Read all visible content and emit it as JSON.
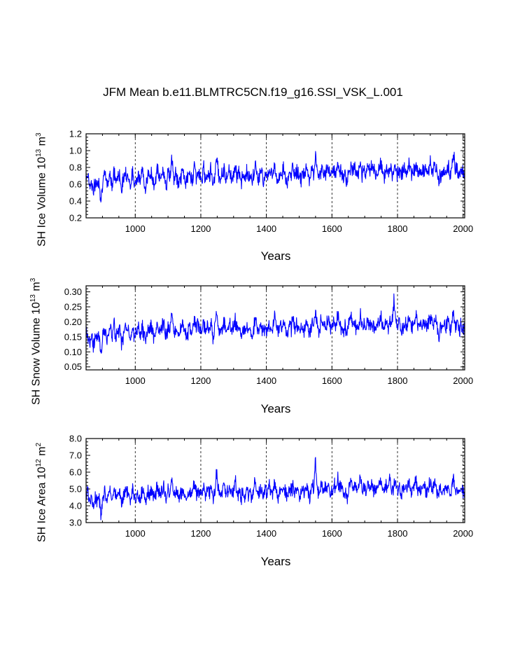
{
  "page": {
    "title": "JFM Mean b.e11.BLMTRC5CN.f19_g16.SSI_VSK_L.001"
  },
  "style": {
    "line_color": "#0000ff",
    "axis_color": "#000000"
  },
  "chart_data": [
    {
      "type": "line",
      "ylabel_main": "SH Ice Volume 10",
      "ylabel_exp": "13",
      "ylabel_unit": " m",
      "ylabel_unit_exp": "3",
      "xlabel": "Years",
      "xlim": [
        850,
        2005
      ],
      "ylim": [
        0.2,
        1.2
      ],
      "xticks": [
        1000,
        1200,
        1400,
        1600,
        1800,
        2000
      ],
      "yticks": [
        0.2,
        0.4,
        0.6,
        0.8,
        1.0,
        1.2
      ],
      "ytick_labels": [
        "0.2",
        "0.4",
        "0.6",
        "0.8",
        "1.0",
        "1.2"
      ],
      "grid_x": true,
      "series": [
        {
          "name": "SH Ice Volume",
          "x_start": 850,
          "x_end": 2005,
          "values": [
            0.68,
            0.72,
            0.58,
            0.63,
            0.5,
            0.62,
            0.6,
            0.65,
            0.41,
            0.66,
            0.7,
            0.61,
            0.64,
            0.74,
            0.58,
            0.76,
            0.62,
            0.69,
            0.72,
            0.55,
            0.64,
            0.78,
            0.7,
            0.66,
            0.59,
            0.73,
            0.6,
            0.68,
            0.71,
            0.63,
            0.76,
            0.66,
            0.57,
            0.7,
            0.67,
            0.72,
            0.64,
            0.61,
            0.79,
            0.69,
            0.65,
            0.75,
            0.72,
            0.58,
            0.74,
            0.68,
            0.93,
            0.64,
            0.7,
            0.66,
            0.6,
            0.71,
            0.76,
            0.65,
            0.62,
            0.73,
            0.69,
            0.67,
            0.82,
            0.7,
            0.74,
            0.68,
            0.64,
            0.79,
            0.66,
            0.75,
            0.71,
            0.77,
            0.62,
            0.68,
            0.96,
            0.73,
            0.67,
            0.7,
            0.8,
            0.64,
            0.72,
            0.78,
            0.66,
            0.7,
            0.85,
            0.69,
            0.75,
            0.6,
            0.73,
            0.64,
            0.77,
            0.68,
            0.7,
            0.59,
            0.74,
            0.82,
            0.66,
            0.71,
            0.76,
            0.62,
            0.74,
            0.68,
            0.8,
            0.72,
            0.69,
            0.87,
            0.7,
            0.63,
            0.75,
            0.72,
            0.8,
            0.66,
            0.58,
            0.74,
            0.7,
            0.83,
            0.68,
            0.76,
            0.71,
            0.66,
            0.74,
            0.69,
            0.78,
            0.72,
            0.64,
            0.81,
            0.7,
            0.95,
            0.73,
            0.68,
            0.8,
            0.75,
            0.7,
            0.77,
            0.82,
            0.68,
            0.74,
            0.79,
            0.7,
            0.86,
            0.73,
            0.76,
            0.69,
            0.72,
            0.6,
            0.78,
            0.84,
            0.74,
            0.8,
            0.71,
            0.76,
            0.88,
            0.72,
            0.78,
            0.69,
            0.82,
            0.75,
            0.8,
            0.74,
            0.7,
            0.73,
            0.78,
            0.84,
            0.76,
            0.7,
            0.79,
            0.74,
            0.82,
            0.72,
            0.77,
            0.81,
            0.71,
            0.8,
            0.66,
            0.75,
            0.78,
            0.73,
            0.86,
            0.76,
            0.7,
            0.79,
            0.83,
            0.74,
            0.78,
            0.72,
            0.8,
            0.76,
            0.71,
            0.84,
            0.79,
            0.74,
            0.82,
            0.77,
            0.6,
            0.73,
            0.69,
            0.78,
            0.75,
            0.81,
            0.72,
            0.76,
            0.97,
            0.74,
            0.79,
            0.71,
            0.77,
            0.73,
            0.68
          ],
          "noise": 0.09
        }
      ]
    },
    {
      "type": "line",
      "ylabel_main": "SH Snow Volume 10",
      "ylabel_exp": "13",
      "ylabel_unit": " m",
      "ylabel_unit_exp": "3",
      "xlabel": "Years",
      "xlim": [
        850,
        2005
      ],
      "ylim": [
        0.04,
        0.32
      ],
      "xticks": [
        1000,
        1200,
        1400,
        1600,
        1800,
        2000
      ],
      "yticks": [
        0.05,
        0.1,
        0.15,
        0.2,
        0.25,
        0.3
      ],
      "ytick_labels": [
        "0.05",
        "0.10",
        "0.15",
        "0.20",
        "0.25",
        "0.30"
      ],
      "grid_x": true,
      "series": [
        {
          "name": "SH Snow Volume",
          "x_start": 850,
          "x_end": 2005,
          "values": [
            0.17,
            0.16,
            0.13,
            0.15,
            0.12,
            0.16,
            0.15,
            0.16,
            0.09,
            0.16,
            0.17,
            0.15,
            0.16,
            0.18,
            0.14,
            0.19,
            0.15,
            0.17,
            0.18,
            0.13,
            0.16,
            0.19,
            0.17,
            0.16,
            0.14,
            0.18,
            0.15,
            0.17,
            0.18,
            0.16,
            0.19,
            0.16,
            0.14,
            0.18,
            0.17,
            0.18,
            0.16,
            0.15,
            0.2,
            0.17,
            0.16,
            0.19,
            0.18,
            0.14,
            0.19,
            0.17,
            0.23,
            0.16,
            0.18,
            0.17,
            0.15,
            0.18,
            0.19,
            0.16,
            0.15,
            0.18,
            0.17,
            0.17,
            0.21,
            0.18,
            0.19,
            0.17,
            0.16,
            0.2,
            0.16,
            0.19,
            0.18,
            0.19,
            0.15,
            0.17,
            0.24,
            0.18,
            0.17,
            0.18,
            0.2,
            0.16,
            0.18,
            0.2,
            0.17,
            0.18,
            0.21,
            0.17,
            0.19,
            0.15,
            0.18,
            0.16,
            0.19,
            0.17,
            0.18,
            0.14,
            0.19,
            0.21,
            0.17,
            0.18,
            0.19,
            0.16,
            0.19,
            0.17,
            0.2,
            0.18,
            0.17,
            0.24,
            0.18,
            0.16,
            0.19,
            0.18,
            0.2,
            0.17,
            0.14,
            0.19,
            0.18,
            0.21,
            0.17,
            0.19,
            0.18,
            0.17,
            0.19,
            0.17,
            0.2,
            0.18,
            0.16,
            0.21,
            0.18,
            0.24,
            0.19,
            0.17,
            0.2,
            0.19,
            0.18,
            0.19,
            0.21,
            0.17,
            0.19,
            0.2,
            0.18,
            0.22,
            0.19,
            0.19,
            0.17,
            0.18,
            0.15,
            0.2,
            0.21,
            0.19,
            0.2,
            0.18,
            0.19,
            0.22,
            0.18,
            0.2,
            0.17,
            0.21,
            0.19,
            0.2,
            0.19,
            0.18,
            0.19,
            0.2,
            0.21,
            0.19,
            0.18,
            0.2,
            0.19,
            0.21,
            0.18,
            0.27,
            0.21,
            0.18,
            0.2,
            0.17,
            0.19,
            0.2,
            0.19,
            0.22,
            0.19,
            0.18,
            0.2,
            0.21,
            0.19,
            0.2,
            0.18,
            0.2,
            0.19,
            0.18,
            0.21,
            0.2,
            0.19,
            0.21,
            0.2,
            0.15,
            0.19,
            0.18,
            0.2,
            0.19,
            0.21,
            0.18,
            0.19,
            0.24,
            0.18,
            0.2,
            0.17,
            0.19,
            0.18,
            0.17
          ],
          "noise": 0.025
        }
      ]
    },
    {
      "type": "line",
      "ylabel_main": "SH Ice Area 10",
      "ylabel_exp": "12",
      "ylabel_unit": " m",
      "ylabel_unit_exp": "2",
      "xlabel": "Years",
      "xlim": [
        850,
        2005
      ],
      "ylim": [
        3.0,
        8.0
      ],
      "xticks": [
        1000,
        1200,
        1400,
        1600,
        1800,
        2000
      ],
      "yticks": [
        3.0,
        4.0,
        5.0,
        6.0,
        7.0,
        8.0
      ],
      "ytick_labels": [
        "3.0",
        "4.0",
        "5.0",
        "6.0",
        "7.0",
        "8.0"
      ],
      "grid_x": true,
      "series": [
        {
          "name": "SH Ice Area",
          "x_start": 850,
          "x_end": 2005,
          "values": [
            4.6,
            4.8,
            4.2,
            4.5,
            3.9,
            4.5,
            4.4,
            4.6,
            3.3,
            4.6,
            4.8,
            4.4,
            4.6,
            4.9,
            4.3,
            5.0,
            4.5,
            4.7,
            4.9,
            4.1,
            4.6,
            5.0,
            4.8,
            4.6,
            4.3,
            4.9,
            4.4,
            4.7,
            4.8,
            4.5,
            5.0,
            4.6,
            4.2,
            4.8,
            4.7,
            4.9,
            4.6,
            4.4,
            5.1,
            4.8,
            4.6,
            5.0,
            4.9,
            4.3,
            5.0,
            4.7,
            5.8,
            4.6,
            4.8,
            4.6,
            4.4,
            4.8,
            5.0,
            4.6,
            4.5,
            4.9,
            4.7,
            4.7,
            5.4,
            4.8,
            4.9,
            4.7,
            4.6,
            5.1,
            4.6,
            5.0,
            4.8,
            5.0,
            4.4,
            4.7,
            6.1,
            4.9,
            4.7,
            4.8,
            5.2,
            4.6,
            4.8,
            5.1,
            4.7,
            4.8,
            5.5,
            4.7,
            5.0,
            4.4,
            4.9,
            4.6,
            5.0,
            4.7,
            4.8,
            4.3,
            5.0,
            5.4,
            4.7,
            4.8,
            5.0,
            4.5,
            5.0,
            4.7,
            5.2,
            4.9,
            4.7,
            5.6,
            4.8,
            4.5,
            5.0,
            4.9,
            5.2,
            4.7,
            4.3,
            5.0,
            4.8,
            5.4,
            4.7,
            5.0,
            4.9,
            4.6,
            5.0,
            4.7,
            5.1,
            4.9,
            4.5,
            5.3,
            4.8,
            6.7,
            5.0,
            4.7,
            5.2,
            5.0,
            4.9,
            5.1,
            5.4,
            4.7,
            5.0,
            5.2,
            4.9,
            5.6,
            5.0,
            5.1,
            4.8,
            4.9,
            4.4,
            5.1,
            5.5,
            5.0,
            5.2,
            4.9,
            5.0,
            5.7,
            4.9,
            5.2,
            4.8,
            5.4,
            5.0,
            5.2,
            5.0,
            4.9,
            5.0,
            5.2,
            5.5,
            5.0,
            4.9,
            5.2,
            5.0,
            5.5,
            4.9,
            5.1,
            5.4,
            4.9,
            5.2,
            4.6,
            5.0,
            5.1,
            5.0,
            5.6,
            5.0,
            4.9,
            5.2,
            5.4,
            5.0,
            5.1,
            4.9,
            5.2,
            5.0,
            4.8,
            5.4,
            5.2,
            5.0,
            5.3,
            5.1,
            4.5,
            5.0,
            4.8,
            5.1,
            5.0,
            5.2,
            4.9,
            5.0,
            5.8,
            4.9,
            5.1,
            4.8,
            5.0,
            4.9,
            4.7
          ],
          "noise": 0.42
        }
      ]
    }
  ]
}
